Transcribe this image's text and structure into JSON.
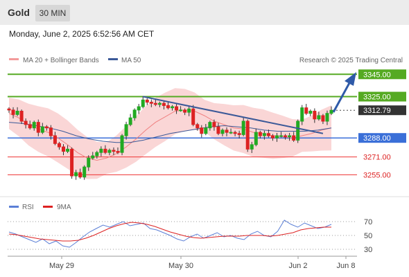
{
  "header": {
    "symbol": "Gold",
    "timeframe": "30 MIN",
    "datetime": "Monday, June 2, 2025 6:52:56 AM CET"
  },
  "legend": {
    "ma20": "MA 20 + Bollinger Bands",
    "ma50": "MA 50",
    "credit": "Research © 2025 Trading Central"
  },
  "rsi_legend": {
    "rsi": "RSI",
    "ma": "9MA"
  },
  "colors": {
    "up": "#22aa22",
    "down": "#dd2222",
    "resistance": "#55aa22",
    "support": "#ee3333",
    "pivot": "#3a6fd8",
    "trend": "#3b5998",
    "rsi": "#5b7fd6",
    "rsi_ma": "#dd2222",
    "band": "#f8c8c8"
  },
  "levels": [
    {
      "value": 3345.0,
      "label": "3345.00",
      "kind": "resistance"
    },
    {
      "value": 3325.0,
      "label": "3325.00",
      "kind": "resistance"
    },
    {
      "value": 3312.79,
      "label": "3312.79",
      "kind": "last"
    },
    {
      "value": 3288.0,
      "label": "3288.00",
      "kind": "pivot"
    },
    {
      "value": 3271.0,
      "label": "3271.00",
      "kind": "support"
    },
    {
      "value": 3255.0,
      "label": "3255.00",
      "kind": "support"
    }
  ],
  "rsi_levels": [
    "70",
    "50",
    "30"
  ],
  "x_axis_labels": [
    "May 29",
    "May 30",
    "Jun 2",
    "Jun 8"
  ],
  "chart_data": {
    "type": "candlestick",
    "ylim": [
      3241,
      3352
    ],
    "series": [
      {
        "name": "Price",
        "values": [
          3313.0,
          3309.0,
          3312.0,
          3303.0,
          3300.0,
          3297.0,
          3302.0,
          3293.0,
          3298.0,
          3297.0,
          3290.0,
          3283.0,
          3280.0,
          3276.0,
          3278.0,
          3254.0,
          3257.0,
          3253.0,
          3262.0,
          3270.0,
          3272.0,
          3275.0,
          3278.0,
          3275.0,
          3277.0,
          3276.0,
          3275.0,
          3290.0,
          3300.0,
          3306.0,
          3313.0,
          3316.0,
          3322.0,
          3320.0,
          3319.0,
          3318.0,
          3319.0,
          3317.0,
          3315.0,
          3316.0,
          3313.0,
          3313.0,
          3311.0,
          3314.0,
          3300.0,
          3297.0,
          3292.0,
          3297.0,
          3302.0,
          3298.0,
          3292.0,
          3295.0,
          3293.0,
          3293.0,
          3292.0,
          3291.0,
          3303.0,
          3278.0,
          3282.0,
          3293.0,
          3290.0,
          3292.0,
          3290.0,
          3288.0,
          3290.0,
          3290.0,
          3289.0,
          3290.0,
          3286.0,
          3303.0,
          3315.0,
          3310.0,
          3312.0,
          3305.0,
          3308.0,
          3303.0,
          3310.0,
          3312.79
        ]
      },
      {
        "name": "MA 20",
        "values": [
          3310.0,
          3306.0,
          3300.0,
          3296.0,
          3293.0,
          3288.0,
          3282.0,
          3275.0,
          3270.0,
          3268.0,
          3270.0,
          3274.0,
          3280.0,
          3287.0,
          3295.0,
          3302.0,
          3307.0,
          3312.0,
          3313.0,
          3312.0,
          3308.0,
          3303.0,
          3300.0,
          3297.0,
          3296.0,
          3293.0,
          3292.0,
          3290.0,
          3289.0,
          3288.0,
          3290.0,
          3292.0,
          3295.0,
          3297.0
        ]
      },
      {
        "name": "MA 50",
        "values": [
          3302.0,
          3301.0,
          3299.0,
          3297.0,
          3294.0,
          3290.0,
          3287.0,
          3285.0,
          3284.0,
          3284.0,
          3286.0,
          3289.0,
          3292.0,
          3294.0,
          3296.0,
          3298.0,
          3299.0,
          3298.0,
          3297.0,
          3295.0,
          3294.0,
          3294.0,
          3294.0,
          3295.0,
          3297.0
        ]
      },
      {
        "name": "RSI",
        "values": [
          55,
          52,
          48,
          44,
          40,
          45,
          38,
          42,
          35,
          33,
          40,
          48,
          55,
          60,
          65,
          62,
          66,
          70,
          64,
          66,
          68,
          60,
          58,
          54,
          50,
          45,
          42,
          48,
          52,
          46,
          50,
          54,
          48,
          50,
          46,
          44,
          52,
          56,
          50,
          48,
          56,
          72,
          66,
          62,
          68,
          64,
          60,
          62,
          66
        ]
      },
      {
        "name": "9MA",
        "values": [
          52,
          51,
          49,
          47,
          45,
          44,
          43,
          42,
          42,
          43,
          46,
          50,
          55,
          60,
          64,
          67,
          69,
          68,
          66,
          63,
          59,
          55,
          52,
          49,
          47,
          46,
          47,
          48,
          49,
          49,
          49,
          50,
          50,
          50,
          49,
          50,
          52,
          54,
          58,
          60,
          61,
          62,
          62
        ]
      }
    ]
  }
}
